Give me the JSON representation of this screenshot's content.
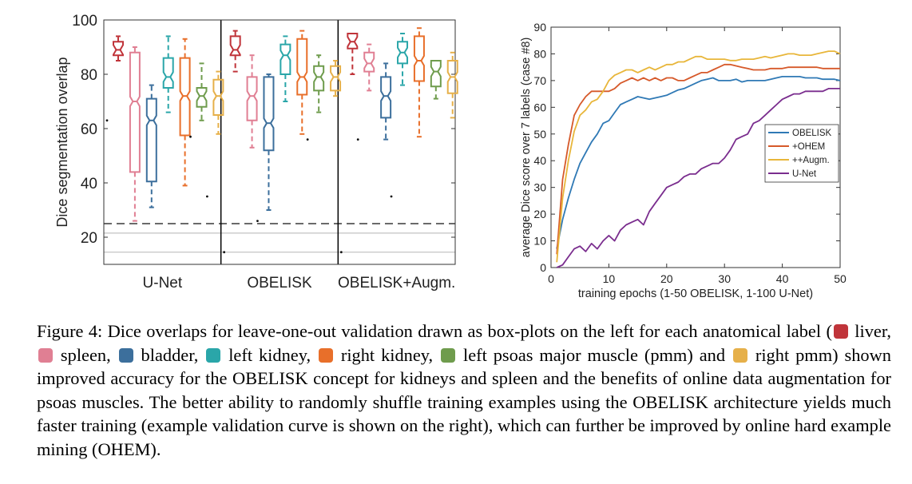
{
  "chart_data": [
    {
      "type": "box",
      "ylabel": "Dice segmentation overlap",
      "ylim": [
        10,
        100
      ],
      "yticks": [
        20,
        40,
        60,
        80,
        100
      ],
      "groups": [
        "U-Net",
        "OBELISK",
        "OBELISK+Augm."
      ],
      "labels": [
        "liver",
        "spleen",
        "bladder",
        "left kidney",
        "right kidney",
        "left psoas major muscle (pmm)",
        "right pmm"
      ],
      "colors": [
        "#c0343a",
        "#e07f93",
        "#3c6f9c",
        "#2aa6a9",
        "#e86f2a",
        "#6f9c4d",
        "#e6b04a"
      ],
      "reference_lines": [
        {
          "y": 25,
          "style": "dashed"
        },
        {
          "y": 21.5,
          "style": "solid"
        },
        {
          "y": 14.5,
          "style": "solid"
        }
      ],
      "boxes": [
        [
          {
            "q1": 87,
            "median": 89,
            "q3": 92,
            "whisker_low": 85,
            "whisker_high": 94,
            "outliers": [
              63
            ]
          },
          {
            "q1": 44,
            "median": 70,
            "q3": 88,
            "whisker_low": 26,
            "whisker_high": 90,
            "outliers": []
          },
          {
            "q1": 40.5,
            "median": 63,
            "q3": 71,
            "whisker_low": 31,
            "whisker_high": 76,
            "outliers": []
          },
          {
            "q1": 75,
            "median": 79,
            "q3": 86,
            "whisker_low": 66,
            "whisker_high": 94,
            "outliers": []
          },
          {
            "q1": 57.5,
            "median": 72,
            "q3": 86,
            "whisker_low": 39,
            "whisker_high": 93,
            "outliers": []
          },
          {
            "q1": 68,
            "median": 72,
            "q3": 75,
            "whisker_low": 63,
            "whisker_high": 84,
            "outliers": [
              57
            ]
          },
          {
            "q1": 65,
            "median": 72,
            "q3": 78,
            "whisker_low": 58,
            "whisker_high": 81,
            "outliers": [
              35
            ]
          }
        ],
        [
          {
            "q1": 87,
            "median": 89,
            "q3": 94,
            "whisker_low": 81,
            "whisker_high": 96,
            "outliers": [
              14.5
            ]
          },
          {
            "q1": 63,
            "median": 72,
            "q3": 79,
            "whisker_low": 53,
            "whisker_high": 87,
            "outliers": []
          },
          {
            "q1": 52,
            "median": 62,
            "q3": 79,
            "whisker_low": 30,
            "whisker_high": 80,
            "outliers": [
              26
            ]
          },
          {
            "q1": 80,
            "median": 87,
            "q3": 91,
            "whisker_low": 70,
            "whisker_high": 94,
            "outliers": []
          },
          {
            "q1": 72.5,
            "median": 79,
            "q3": 93,
            "whisker_low": 58,
            "whisker_high": 96,
            "outliers": []
          },
          {
            "q1": 74,
            "median": 79,
            "q3": 83,
            "whisker_low": 66,
            "whisker_high": 87,
            "outliers": [
              56
            ]
          },
          {
            "q1": 74,
            "median": 79,
            "q3": 83,
            "whisker_low": 72,
            "whisker_high": 85,
            "outliers": []
          }
        ],
        [
          {
            "q1": 89.5,
            "median": 92,
            "q3": 95,
            "whisker_low": 80,
            "whisker_high": 95,
            "outliers": [
              14.5
            ]
          },
          {
            "q1": 81,
            "median": 84,
            "q3": 88,
            "whisker_low": 74,
            "whisker_high": 91,
            "outliers": [
              56
            ]
          },
          {
            "q1": 64,
            "median": 72,
            "q3": 79,
            "whisker_low": 56,
            "whisker_high": 84,
            "outliers": []
          },
          {
            "q1": 84,
            "median": 88,
            "q3": 92,
            "whisker_low": 76,
            "whisker_high": 95,
            "outliers": [
              35
            ]
          },
          {
            "q1": 77.5,
            "median": 85,
            "q3": 94,
            "whisker_low": 57,
            "whisker_high": 97,
            "outliers": []
          },
          {
            "q1": 75.5,
            "median": 81,
            "q3": 85,
            "whisker_low": 71,
            "whisker_high": 85,
            "outliers": []
          },
          {
            "q1": 73,
            "median": 79,
            "q3": 85,
            "whisker_low": 64,
            "whisker_high": 88,
            "outliers": []
          }
        ]
      ]
    },
    {
      "type": "line",
      "xlabel": "training epochs (1-50 OBELISK, 1-100 U-Net)",
      "ylabel": "average Dice score over 7 labels (case #8)",
      "xlim": [
        0,
        50
      ],
      "ylim": [
        0,
        90
      ],
      "xticks": [
        0,
        10,
        20,
        30,
        40,
        50
      ],
      "yticks": [
        0,
        10,
        20,
        30,
        40,
        50,
        60,
        70,
        80,
        90
      ],
      "legend": "right-middle",
      "x": [
        1,
        2,
        3,
        4,
        5,
        6,
        7,
        8,
        9,
        10,
        11,
        12,
        13,
        14,
        15,
        16,
        17,
        18,
        19,
        20,
        21,
        22,
        23,
        24,
        25,
        26,
        27,
        28,
        29,
        30,
        31,
        32,
        33,
        34,
        35,
        36,
        37,
        38,
        39,
        40,
        41,
        42,
        43,
        44,
        45,
        46,
        47,
        48,
        49,
        50
      ],
      "series": [
        {
          "name": "OBELISK",
          "color": "#2f79b5",
          "values": [
            7,
            18,
            26,
            33,
            39,
            43,
            47,
            50,
            54,
            55,
            58,
            61,
            62,
            63,
            64,
            63.5,
            63,
            63.5,
            64,
            64.5,
            65.5,
            66.5,
            67,
            68,
            69,
            70,
            70.5,
            71,
            70,
            70,
            70,
            70.5,
            69.5,
            70,
            70,
            70,
            70,
            70.5,
            71,
            71.5,
            71.5,
            71.5,
            71.5,
            71,
            71,
            71,
            70.5,
            70.5,
            70.5,
            70
          ]
        },
        {
          "name": "+OHEM",
          "color": "#d6592a",
          "values": [
            5,
            33,
            46,
            57,
            61,
            64,
            66,
            66,
            66,
            66,
            67,
            69,
            70,
            71,
            70,
            71,
            70,
            71,
            70,
            71,
            71,
            70,
            70,
            71,
            72,
            73,
            73,
            74,
            75,
            76,
            76,
            75.5,
            75,
            74.5,
            74,
            74,
            74,
            74.5,
            74.5,
            74.5,
            75,
            75,
            75,
            75,
            75,
            75,
            74.5,
            74.5,
            74.5,
            74.5
          ]
        },
        {
          "name": "++Augm.",
          "color": "#e8b63a",
          "values": [
            2,
            26,
            40,
            51,
            57,
            59,
            62,
            63,
            66,
            70,
            72,
            73,
            74,
            74,
            73,
            74,
            75,
            74,
            75,
            76,
            76,
            77,
            77,
            78,
            79,
            79,
            78,
            78,
            78,
            78,
            77.5,
            77.5,
            78,
            78,
            78,
            78.5,
            79,
            78.5,
            79,
            79.5,
            80,
            80,
            79.5,
            79.5,
            79.5,
            80,
            80.5,
            81,
            81,
            80
          ]
        },
        {
          "name": "U-Net",
          "color": "#7a2d8e",
          "values": [
            0,
            1,
            4,
            7,
            8,
            6,
            9,
            7,
            10,
            12,
            10,
            14,
            16,
            17,
            18,
            16,
            21,
            24,
            27,
            30,
            31,
            32,
            34,
            35,
            35,
            37,
            38,
            39,
            39,
            41,
            44,
            48,
            49,
            50,
            54,
            55,
            57,
            59,
            61,
            63,
            64,
            65,
            65,
            66,
            66,
            66,
            66,
            67,
            67,
            67
          ]
        }
      ]
    }
  ],
  "caption": {
    "prefix": "Figure 4: Dice overlaps for leave-one-out validation drawn as box-plots on the left for each anatomical label (",
    "items": [
      {
        "label": "liver,",
        "color": "#c0343a"
      },
      {
        "label": "spleen,",
        "color": "#e07f93"
      },
      {
        "label": "bladder,",
        "color": "#3c6f9c"
      },
      {
        "label": "left kidney,",
        "color": "#2aa6a9"
      },
      {
        "label": "right kidney,",
        "color": "#e86f2a"
      },
      {
        "label": "left psoas major muscle (pmm)",
        "color": "#6f9c4d"
      }
    ],
    "joiner": "and",
    "last_item": {
      "label": "right pmm)",
      "color": "#e6b04a"
    },
    "suffix": "shown improved accuracy for the OBELISK concept for kidneys and spleen and the benefits of online data augmentation for psoas muscles. The better ability to randomly shuffle training examples using the OBELISK architecture yields much faster training (example validation curve is shown on the right), which can further be improved by online hard example mining (OHEM)."
  }
}
